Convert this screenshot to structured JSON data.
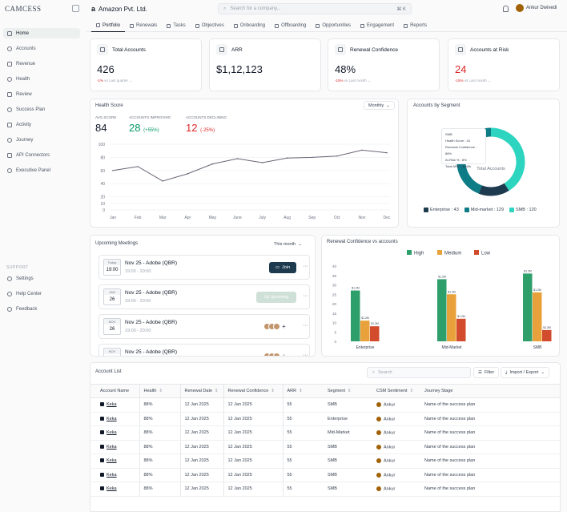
{
  "brand": "CAMCESS",
  "company": {
    "logo": "a",
    "name": "Amazon Pvt. Ltd."
  },
  "search": {
    "placeholder": "Search for a company...",
    "shortcut": "⌘ K"
  },
  "user": {
    "name": "Ankur Dwivedi"
  },
  "sidebar": {
    "items": [
      {
        "label": "Home",
        "icon": "home-icon",
        "active": true
      },
      {
        "label": "Accounts",
        "icon": "accounts-icon"
      },
      {
        "label": "Revenue",
        "icon": "revenue-icon"
      },
      {
        "label": "Health",
        "icon": "health-icon"
      },
      {
        "label": "Review",
        "icon": "review-icon"
      },
      {
        "label": "Success Plan",
        "icon": "success-plan-icon"
      },
      {
        "label": "Activity",
        "icon": "activity-icon"
      },
      {
        "label": "Journey",
        "icon": "journey-icon"
      },
      {
        "label": "API Connectors",
        "icon": "api-icon"
      },
      {
        "label": "Executive Panel",
        "icon": "executive-icon"
      }
    ],
    "support_label": "SUPPORT",
    "support_items": [
      {
        "label": "Settings",
        "icon": "settings-icon"
      },
      {
        "label": "Help Center",
        "icon": "help-icon"
      },
      {
        "label": "Feedback",
        "icon": "feedback-icon"
      }
    ]
  },
  "tabs": [
    {
      "label": "Portfolio",
      "active": true
    },
    {
      "label": "Renewals"
    },
    {
      "label": "Tasks"
    },
    {
      "label": "Objectives"
    },
    {
      "label": "Onboarding"
    },
    {
      "label": "Offboarding"
    },
    {
      "label": "Opportunities"
    },
    {
      "label": "Engagement"
    },
    {
      "label": "Reports"
    }
  ],
  "kpis": [
    {
      "title": "Total Accounts",
      "value": "426",
      "change": "-1%",
      "period": "vs Last quarter",
      "value_color": "#111827"
    },
    {
      "title": "ARR",
      "value": "$1,12,123",
      "change": "",
      "period": "",
      "value_color": "#111827"
    },
    {
      "title": "Renewal Confidence",
      "value": "48%",
      "change": "-15%",
      "period": "vs Last month",
      "value_color": "#111827"
    },
    {
      "title": "Accounts at Risk",
      "value": "24",
      "change": "-15%",
      "period": "vs Last month",
      "value_color": "#dc2626"
    }
  ],
  "health": {
    "title": "Health Score",
    "period": "Monthly",
    "avg_label": "AVG.SCORE",
    "avg_value": "84",
    "improving_label": "ACCOUNTS IMPROVING",
    "improving_value": "28",
    "improving_change": "(+55%)",
    "declining_label": "ACCOUNTS DECLINING",
    "declining_value": "12",
    "declining_change": "(-25%)"
  },
  "segment": {
    "title": "Accounts by Segment",
    "center_label": "Total Accounts",
    "tooltip": [
      "SMB",
      "Health Score : 43",
      "Renewal Confidence : 88%",
      "At-Risk % : 8%",
      "Total ARR : $840k"
    ],
    "legend": [
      {
        "label": "Enterprise : 43",
        "color": "#1e3a4f"
      },
      {
        "label": "Mid-market : 129",
        "color": "#0e7c86"
      },
      {
        "label": "SMB : 120",
        "color": "#2dd4bf"
      }
    ]
  },
  "meetings": {
    "title": "Upcoming Meetings",
    "period": "This month",
    "items": [
      {
        "date_top": "Today",
        "date_bot": "19:00",
        "title": "Nov 25 - Adobe (QBR)",
        "time": "19:00 - 20:00",
        "action": "Join"
      },
      {
        "date_top": "JAN",
        "date_bot": "26",
        "title": "Nov 25 - Adobe (QBR)",
        "time": "19:00 - 20:00",
        "action": "Up Upcoming"
      },
      {
        "date_top": "NOV",
        "date_bot": "26",
        "title": "Nov 25 - Adobe (QBR)",
        "time": "19:00 - 20:00",
        "action": "people"
      },
      {
        "date_top": "NOV",
        "date_bot": "26",
        "title": "Nov 25 - Adobe (QBR)",
        "time": "19:00 - 20:00",
        "action": "people"
      }
    ]
  },
  "renewal": {
    "title": "Renewal Confidence vs accounts"
  },
  "chart_data": [
    {
      "type": "line",
      "title": "Health Score",
      "categories": [
        "Jan",
        "Feb",
        "Mar",
        "Apr",
        "May",
        "June",
        "July",
        "Aug",
        "Sep",
        "Oct",
        "Nov",
        "Dec"
      ],
      "values": [
        60,
        66,
        44,
        55,
        70,
        78,
        72,
        79,
        80,
        82,
        91,
        87
      ],
      "ylim": [
        0,
        100
      ],
      "yticks": [
        0,
        10,
        20,
        40,
        60,
        80,
        100
      ],
      "color": "#6b6375"
    },
    {
      "type": "pie",
      "title": "Accounts by Segment",
      "categories": [
        "Enterprise",
        "Mid-market",
        "SMB"
      ],
      "values": [
        43,
        129,
        120
      ],
      "colors": [
        "#1e3a4f",
        "#0e7c86",
        "#2dd4bf"
      ]
    },
    {
      "type": "bar",
      "title": "Renewal Confidence vs accounts",
      "categories": [
        "Enterprise",
        "Mid-Market",
        "SMB"
      ],
      "series": [
        {
          "name": "High",
          "color": "#2e9e6b",
          "values": [
            27,
            33,
            36
          ],
          "labels": [
            "$1.2M",
            "$1.2M",
            "$1.2M"
          ]
        },
        {
          "name": "Medium",
          "color": "#e9a23b",
          "values": [
            11,
            25,
            26
          ],
          "labels": [
            "$1.2M",
            "$1.2M",
            "$1.2M"
          ]
        },
        {
          "name": "Low",
          "color": "#d14b2c",
          "values": [
            8,
            12,
            6
          ],
          "labels": [
            "$1.2M",
            "$1.2M",
            "$1.2M"
          ]
        }
      ],
      "ylim": [
        0,
        40
      ],
      "yticks": [
        0,
        5,
        10,
        15,
        20,
        25,
        30,
        35,
        40
      ]
    }
  ],
  "table": {
    "title": "Account List",
    "search_placeholder": "Search",
    "filter_label": "Filter",
    "export_label": "Import / Export",
    "columns": [
      "Account Name",
      "Health",
      "Renewal Date",
      "Renewal Confidence",
      "ARR",
      "Segment",
      "CSM Sentiment",
      "Journey Stage"
    ],
    "rows": [
      [
        "Keka",
        "88%",
        "12 Jan 2025",
        "12 Jan 2025",
        "55",
        "SMB",
        "Ankur",
        "Name of the success plan"
      ],
      [
        "Keka",
        "88%",
        "12 Jan 2025",
        "12 Jan 2025",
        "55",
        "Enterprise",
        "Ankur",
        "Name of the success plan"
      ],
      [
        "Keka",
        "88%",
        "12 Jan 2025",
        "12 Jan 2025",
        "55",
        "Mid-Market",
        "Ankur",
        "Name of the success plan"
      ],
      [
        "Keka",
        "88%",
        "12 Jan 2025",
        "12 Jan 2025",
        "55",
        "SMB",
        "Ankur",
        "Name of the success plan"
      ],
      [
        "Keka",
        "88%",
        "12 Jan 2025",
        "12 Jan 2025",
        "55",
        "SMB",
        "Ankur",
        "Name of the success plan"
      ],
      [
        "Keka",
        "88%",
        "12 Jan 2025",
        "12 Jan 2025",
        "55",
        "SMB",
        "Ankur",
        "Name of the success plan"
      ],
      [
        "Keka",
        "88%",
        "12 Jan 2025",
        "12 Jan 2025",
        "55",
        "SMB",
        "Ankur",
        "Name of the success plan"
      ]
    ]
  }
}
